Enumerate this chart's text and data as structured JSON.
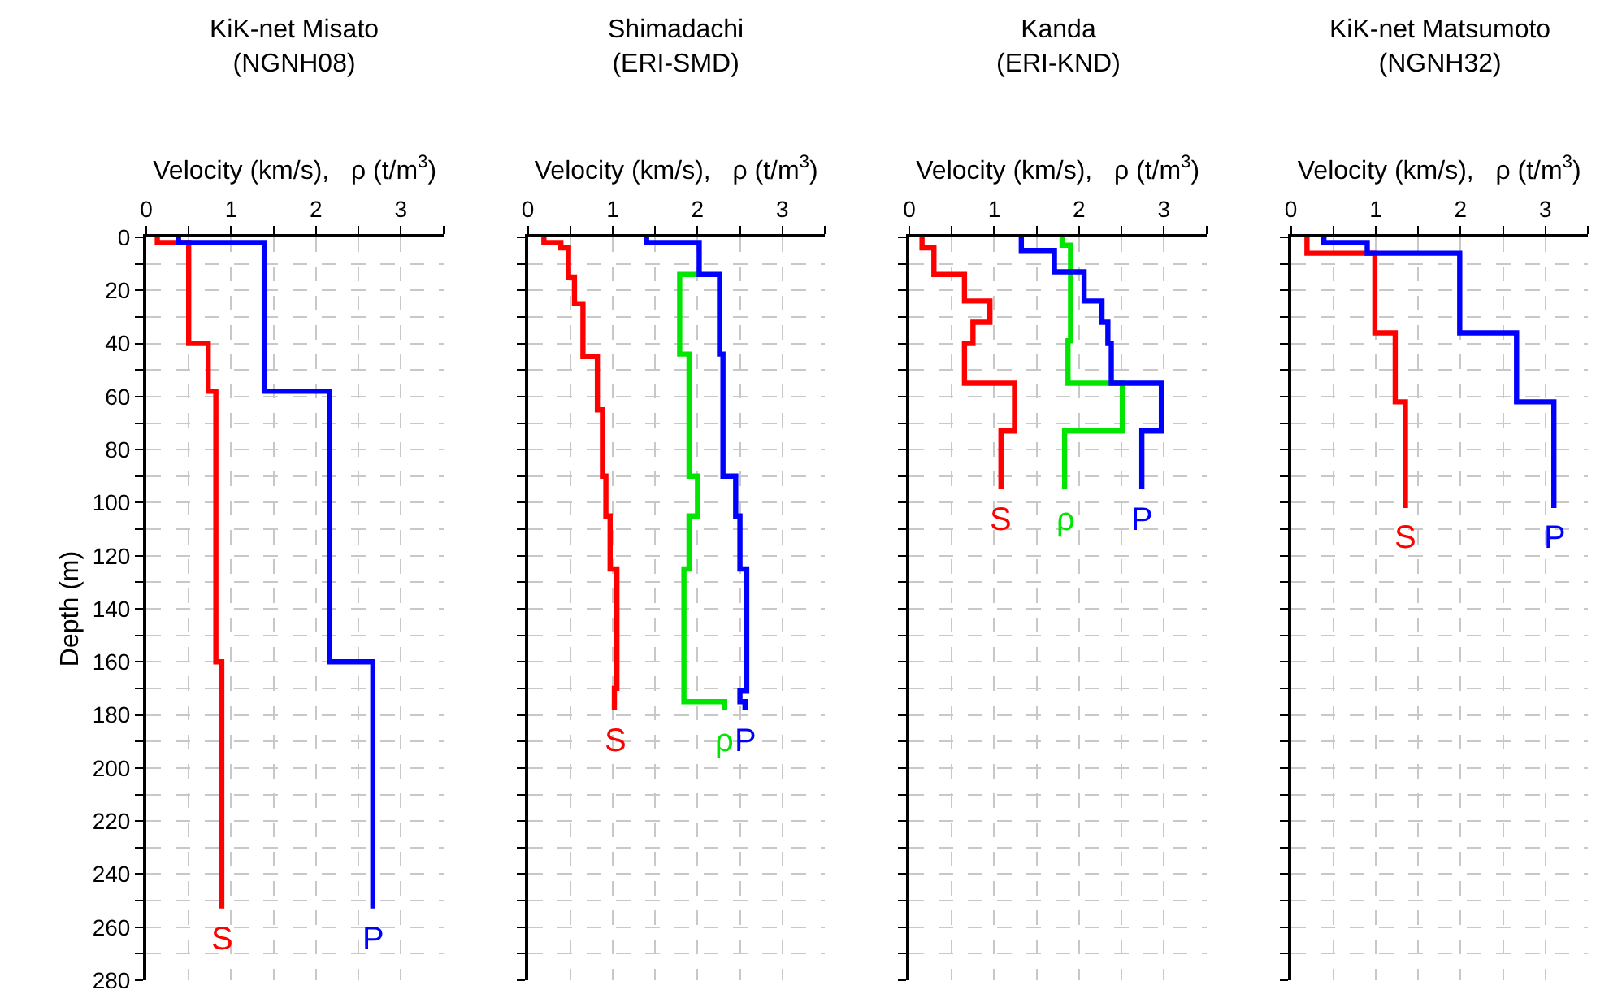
{
  "chart_data": [
    {
      "type": "line",
      "title": "KiK-net Misato\n(NGNH08)",
      "xlabel": "Velocity (km/s),   ρ (t/m$^{3}$)",
      "ylabel": "Depth (m)",
      "xlim": [
        0,
        3.5
      ],
      "ylim": [
        280,
        0
      ],
      "xticks": [
        0,
        {
          "value": 0.5,
          "label": null
        },
        1,
        {
          "value": 1.5,
          "label": null
        },
        2,
        {
          "value": 2.5,
          "label": null
        },
        3,
        {
          "value": 3.5,
          "label": null
        }
      ],
      "yticks": [
        0,
        {
          "value": 10,
          "label": null
        },
        20,
        {
          "value": 30,
          "label": null
        },
        40,
        {
          "value": 50,
          "label": null
        },
        60,
        {
          "value": 70,
          "label": null
        },
        80,
        {
          "value": 90,
          "label": null
        },
        100,
        {
          "value": 110,
          "label": null
        },
        120,
        {
          "value": 130,
          "label": null
        },
        140,
        {
          "value": 150,
          "label": null
        },
        160,
        {
          "value": 170,
          "label": null
        },
        180,
        {
          "value": 190,
          "label": null
        },
        200,
        {
          "value": 210,
          "label": null
        },
        220,
        {
          "value": 230,
          "label": null
        },
        240,
        {
          "value": 250,
          "label": null
        },
        260,
        {
          "value": 270,
          "label": null
        },
        280
      ],
      "grid": true,
      "marker": "none",
      "line_style": "solid",
      "series": [
        {
          "name": "S",
          "color": "#ff0000",
          "x": [
            0.13,
            0.13,
            0.5,
            0.5,
            0.73,
            0.73,
            0.82,
            0.82,
            0.89,
            0.89
          ],
          "values": [
            0,
            2,
            2,
            40,
            40,
            58,
            58,
            160,
            160,
            253
          ]
        },
        {
          "name": "P",
          "color": "#0000ff",
          "x": [
            0.38,
            0.38,
            1.39,
            1.39,
            2.16,
            2.16,
            2.67,
            2.67
          ],
          "values": [
            0,
            2,
            2,
            58,
            58,
            160,
            160,
            253
          ]
        }
      ]
    },
    {
      "type": "line",
      "title": "Shimadachi\n(ERI-SMD)",
      "xlabel": "Velocity (km/s),   ρ (t/m$^{3}$)",
      "xlim": [
        0,
        3.5
      ],
      "ylim": [
        280,
        0
      ],
      "xticks": [
        0,
        {
          "value": 0.5,
          "label": null
        },
        1,
        {
          "value": 1.5,
          "label": null
        },
        2,
        {
          "value": 2.5,
          "label": null
        },
        3,
        {
          "value": 3.5,
          "label": null
        }
      ],
      "yticks": [
        0,
        {
          "value": 10,
          "label": null
        },
        20,
        {
          "value": 30,
          "label": null
        },
        40,
        {
          "value": 50,
          "label": null
        },
        60,
        {
          "value": 70,
          "label": null
        },
        80,
        {
          "value": 90,
          "label": null
        },
        100,
        {
          "value": 110,
          "label": null
        },
        120,
        {
          "value": 130,
          "label": null
        },
        140,
        {
          "value": 150,
          "label": null
        },
        160,
        {
          "value": 170,
          "label": null
        },
        180,
        {
          "value": 190,
          "label": null
        },
        200,
        {
          "value": 210,
          "label": null
        },
        220,
        {
          "value": 230,
          "label": null
        },
        240,
        {
          "value": 250,
          "label": null
        },
        260,
        {
          "value": 270,
          "label": null
        },
        280
      ],
      "tick_labels": "x",
      "grid": true,
      "marker": "none",
      "line_style": "solid",
      "series": [
        {
          "name": "S",
          "color": "#ff0000",
          "x": [
            0.19,
            0.19,
            0.39,
            0.39,
            0.48,
            0.48,
            0.55,
            0.55,
            0.65,
            0.65,
            0.82,
            0.82,
            0.88,
            0.88,
            0.92,
            0.92,
            0.97,
            0.97,
            1.05,
            1.05,
            1.02,
            1.02
          ],
          "values": [
            0,
            2,
            2,
            4,
            4,
            15,
            15,
            25,
            25,
            45,
            45,
            65,
            65,
            90,
            90,
            105,
            105,
            125,
            125,
            170,
            170,
            178
          ]
        },
        {
          "name": "ρ",
          "color": "#00e600",
          "x": [
            2.02,
            1.79,
            1.79,
            1.9,
            1.9,
            2.0,
            2.0,
            1.9,
            1.9,
            1.84,
            1.84,
            2.32,
            2.32
          ],
          "values": [
            14,
            14,
            44,
            44,
            90,
            90,
            105,
            105,
            125,
            125,
            175,
            175,
            178
          ]
        },
        {
          "name": "P",
          "color": "#0000ff",
          "x": [
            1.4,
            1.4,
            2.02,
            2.02,
            2.26,
            2.26,
            2.3,
            2.3,
            2.45,
            2.45,
            2.5,
            2.5,
            2.58,
            2.58,
            2.5,
            2.5,
            2.56,
            2.56
          ],
          "values": [
            0,
            2,
            2,
            14,
            14,
            44,
            44,
            90,
            90,
            105,
            105,
            125,
            125,
            171,
            171,
            175,
            175,
            178
          ]
        }
      ]
    },
    {
      "type": "line",
      "title": "Kanda\n(ERI-KND)",
      "xlabel": "Velocity (km/s),   ρ (t/m$^{3}$)",
      "xlim": [
        0,
        3.5
      ],
      "ylim": [
        280,
        0
      ],
      "xticks": [
        0,
        {
          "value": 0.5,
          "label": null
        },
        1,
        {
          "value": 1.5,
          "label": null
        },
        2,
        {
          "value": 2.5,
          "label": null
        },
        3,
        {
          "value": 3.5,
          "label": null
        }
      ],
      "yticks": [
        0,
        {
          "value": 10,
          "label": null
        },
        20,
        {
          "value": 30,
          "label": null
        },
        40,
        {
          "value": 50,
          "label": null
        },
        60,
        {
          "value": 70,
          "label": null
        },
        80,
        {
          "value": 90,
          "label": null
        },
        100,
        {
          "value": 110,
          "label": null
        },
        120,
        {
          "value": 130,
          "label": null
        },
        140,
        {
          "value": 150,
          "label": null
        },
        160,
        {
          "value": 170,
          "label": null
        },
        180,
        {
          "value": 190,
          "label": null
        },
        200,
        {
          "value": 210,
          "label": null
        },
        220,
        {
          "value": 230,
          "label": null
        },
        240,
        {
          "value": 250,
          "label": null
        },
        260,
        {
          "value": 270,
          "label": null
        },
        280
      ],
      "tick_labels": "x",
      "grid": true,
      "marker": "none",
      "line_style": "solid",
      "series": [
        {
          "name": "S",
          "color": "#ff0000",
          "x": [
            0.15,
            0.15,
            0.29,
            0.29,
            0.65,
            0.65,
            0.95,
            0.95,
            0.75,
            0.75,
            0.65,
            0.65,
            1.24,
            1.24,
            1.08,
            1.08
          ],
          "values": [
            0,
            4,
            4,
            14,
            14,
            24,
            24,
            32,
            32,
            40,
            40,
            55,
            55,
            73,
            73,
            95
          ]
        },
        {
          "name": "ρ",
          "color": "#00e600",
          "x": [
            1.8,
            1.8,
            1.9,
            1.9,
            1.87,
            1.87,
            2.51,
            2.51,
            1.83,
            1.83
          ],
          "values": [
            0,
            3,
            3,
            39,
            39,
            55,
            55,
            73,
            73,
            95
          ]
        },
        {
          "name": "P",
          "color": "#0000ff",
          "x": [
            1.32,
            1.32,
            1.71,
            1.71,
            2.06,
            2.06,
            2.27,
            2.27,
            2.34,
            2.34,
            2.38,
            2.38,
            2.97,
            2.97,
            2.74,
            2.74
          ],
          "values": [
            0,
            5,
            5,
            13,
            13,
            24,
            24,
            32,
            32,
            40,
            40,
            55,
            55,
            73,
            73,
            95
          ]
        }
      ]
    },
    {
      "type": "line",
      "title": "KiK-net Matsumoto\n(NGNH32)",
      "xlabel": "Velocity (km/s),   ρ (t/m$^{3}$)",
      "xlim": [
        0,
        3.5
      ],
      "ylim": [
        280,
        0
      ],
      "xticks": [
        0,
        {
          "value": 0.5,
          "label": null
        },
        1,
        {
          "value": 1.5,
          "label": null
        },
        2,
        {
          "value": 2.5,
          "label": null
        },
        3,
        {
          "value": 3.5,
          "label": null
        }
      ],
      "yticks": [
        0,
        {
          "value": 10,
          "label": null
        },
        20,
        {
          "value": 30,
          "label": null
        },
        40,
        {
          "value": 50,
          "label": null
        },
        60,
        {
          "value": 70,
          "label": null
        },
        80,
        {
          "value": 90,
          "label": null
        },
        100,
        {
          "value": 110,
          "label": null
        },
        120,
        {
          "value": 130,
          "label": null
        },
        140,
        {
          "value": 150,
          "label": null
        },
        160,
        {
          "value": 170,
          "label": null
        },
        180,
        {
          "value": 190,
          "label": null
        },
        200,
        {
          "value": 210,
          "label": null
        },
        220,
        {
          "value": 230,
          "label": null
        },
        240,
        {
          "value": 250,
          "label": null
        },
        260,
        {
          "value": 270,
          "label": null
        },
        280
      ],
      "tick_labels": "x",
      "grid": true,
      "marker": "none",
      "line_style": "solid",
      "series": [
        {
          "name": "S",
          "color": "#ff0000",
          "x": [
            0.19,
            0.19,
            0.99,
            0.99,
            1.23,
            1.23,
            1.35,
            1.35
          ],
          "values": [
            0,
            6,
            6,
            36,
            36,
            62,
            62,
            102
          ]
        },
        {
          "name": "P",
          "color": "#0000ff",
          "x": [
            0.39,
            0.39,
            0.9,
            0.9,
            1.99,
            1.99,
            2.66,
            2.66,
            3.1,
            3.1
          ],
          "values": [
            0,
            2,
            2,
            6,
            6,
            36,
            36,
            62,
            62,
            102
          ]
        }
      ]
    }
  ]
}
